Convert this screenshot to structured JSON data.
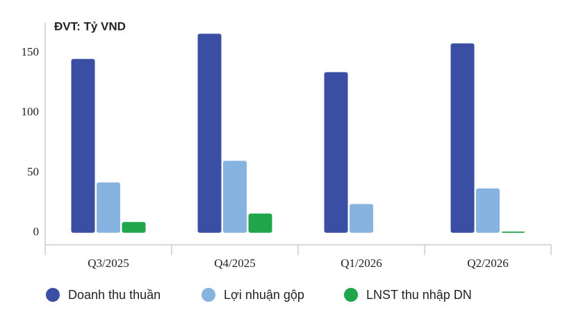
{
  "chart_data": {
    "type": "bar",
    "title": "ĐVT: Tỷ VND",
    "categories": [
      "Q3/2025",
      "Q4/2025",
      "Q1/2026",
      "Q2/2026"
    ],
    "series": [
      {
        "name": "Doanh thu thuần",
        "color": "#3a4fa3",
        "values": [
          145,
          166,
          134,
          158
        ]
      },
      {
        "name": "Lợi nhuận gộp",
        "color": "#86b3e0",
        "values": [
          42,
          60,
          24,
          37
        ]
      },
      {
        "name": "LNST thu nhập DN",
        "color": "#1fa64a",
        "values": [
          9,
          16,
          0,
          1
        ]
      }
    ],
    "ylim": [
      -10,
      175
    ],
    "yticks": [
      0,
      50,
      100,
      150
    ]
  }
}
